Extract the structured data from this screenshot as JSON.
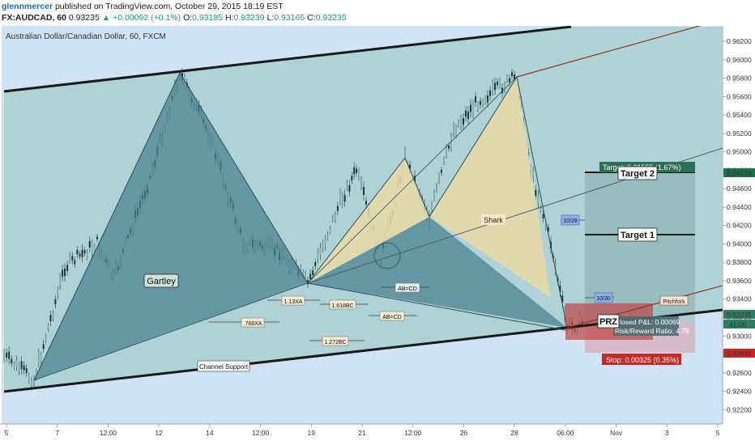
{
  "header": {
    "user": "glennmercer",
    "published": "published on TradingView.com, October 29, 2015 18:19 EST",
    "symbol": "FX:AUDCAD, 60",
    "last": "0.93235",
    "change_arrow": "▲",
    "change": "+0.00092 (+0.1%)",
    "o_label": "O:",
    "o": "0.93185",
    "h_label": "H:",
    "h": "0.93239",
    "l_label": "L:",
    "l": "0.93165",
    "c_label": "C:",
    "c": "0.93235"
  },
  "chart_data": {
    "type": "candlestick",
    "title": "Australian Dollar/Canadian Dollar, 60, FXCM",
    "ylim": [
      0.9215,
      0.9628
    ],
    "yticks": [
      "0.96200",
      "0.96000",
      "0.95800",
      "0.95600",
      "0.95400",
      "0.95200",
      "0.95000",
      "0.94800",
      "0.94600",
      "0.94400",
      "0.94200",
      "0.94000",
      "0.93800",
      "0.93600",
      "0.93400",
      "0.93200",
      "0.93000",
      "0.92800",
      "0.92600",
      "0.92400",
      "0.92200"
    ],
    "xticks": [
      "5",
      "7",
      "12:00",
      "12",
      "14",
      "12:00",
      "19",
      "21",
      "12:00",
      "26",
      "28",
      "06:00",
      "Nov",
      "3",
      "5"
    ],
    "price_badges": {
      "target2": "0.94724",
      "current": "0.93235",
      "countdown": "41:06",
      "stop": "0.92841"
    },
    "colors": {
      "background": "#cfe3f5",
      "channel": "#a8cfd0",
      "gartley": "#4a7f8f",
      "shark": "#e8dba6",
      "prz": "#c0464a",
      "target": "#1f6e4e",
      "stop": "#c62828"
    },
    "labels": {
      "gartley": "Gartley",
      "shark": "Shark",
      "prz": "PRZ",
      "target2": "Target 2",
      "target1": "Target 1",
      "channel_support": "Channel Support",
      "pitchfork": "Pitchfork",
      "r113xa": "1.13XA",
      "r768xa": ".768XA",
      "r1618bc": "1.618BC",
      "r1272bc": "1.272BC",
      "abcd": "AB=CD",
      "abcd2": "AB=CD",
      "n1028": "10/28",
      "n1030": "10/30"
    },
    "trade_box": {
      "target_text": "Target: 0.01555 (1.67%)",
      "pl_text": "Closed P&L: 0.00069",
      "rr_text": "Risk/Reward Ratio: 4.79",
      "stop_text": "Stop: 0.00325 (0.35%)"
    }
  }
}
